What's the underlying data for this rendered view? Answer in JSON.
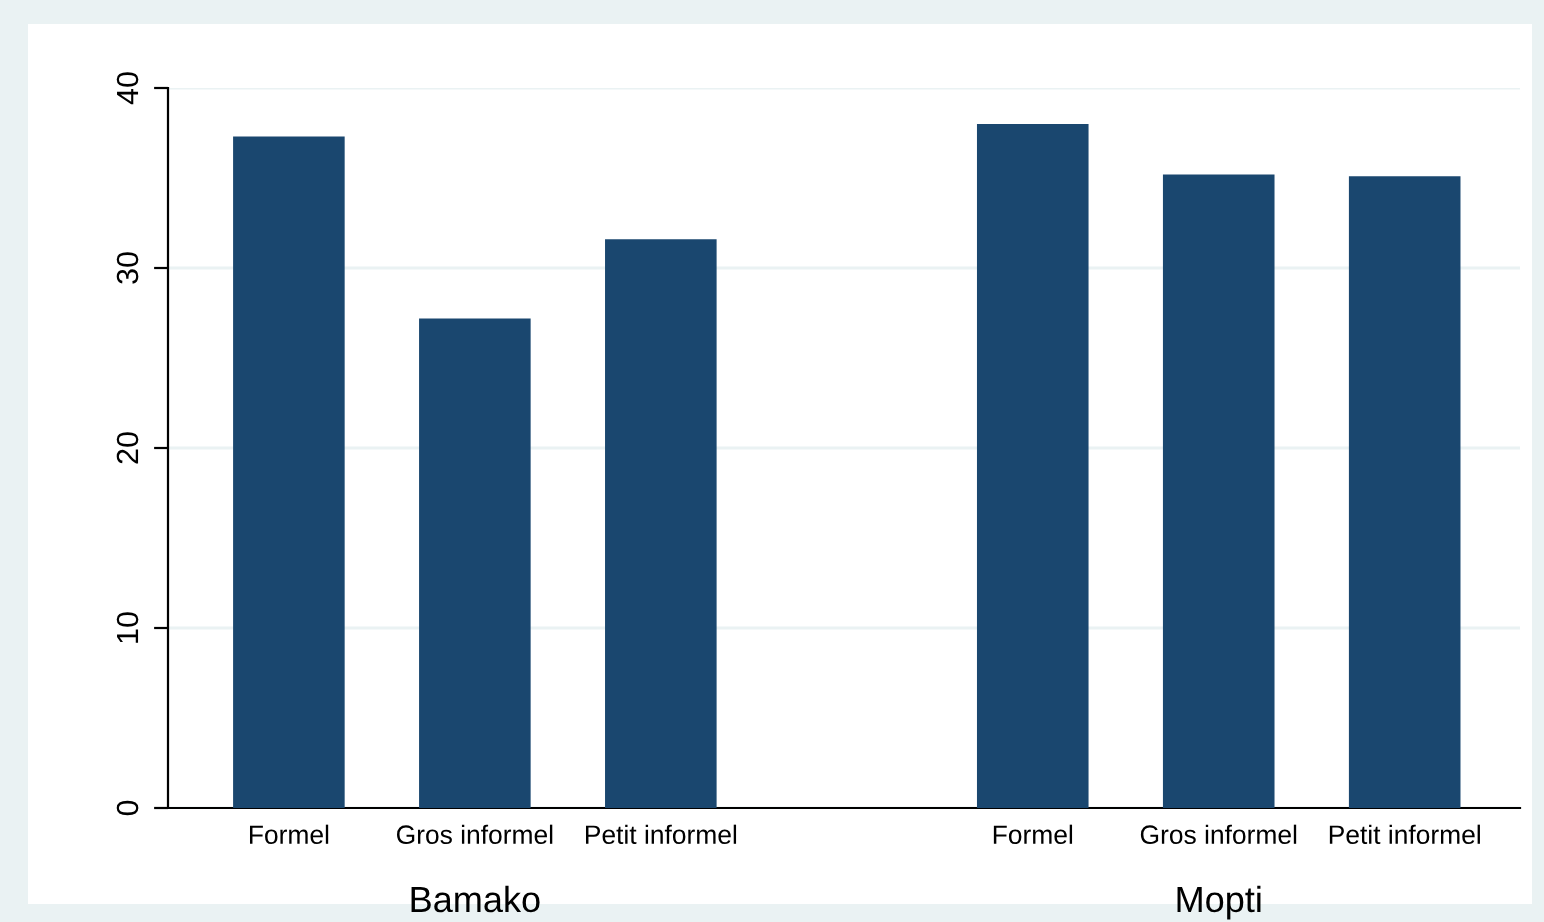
{
  "chart_data": {
    "type": "bar",
    "categories": [
      "Formel",
      "Gros informel",
      "Petit informel",
      null,
      "Formel",
      "Gros informel",
      "Petit informel"
    ],
    "values": [
      37.3,
      27.2,
      31.6,
      null,
      38.0,
      35.2,
      35.1
    ],
    "color": "#1a476f",
    "ylim": [
      0,
      40
    ],
    "yticks": [
      0,
      10,
      20,
      30,
      40
    ],
    "grid": "y",
    "annotations": [
      "Bamako",
      "Mopti"
    ]
  }
}
